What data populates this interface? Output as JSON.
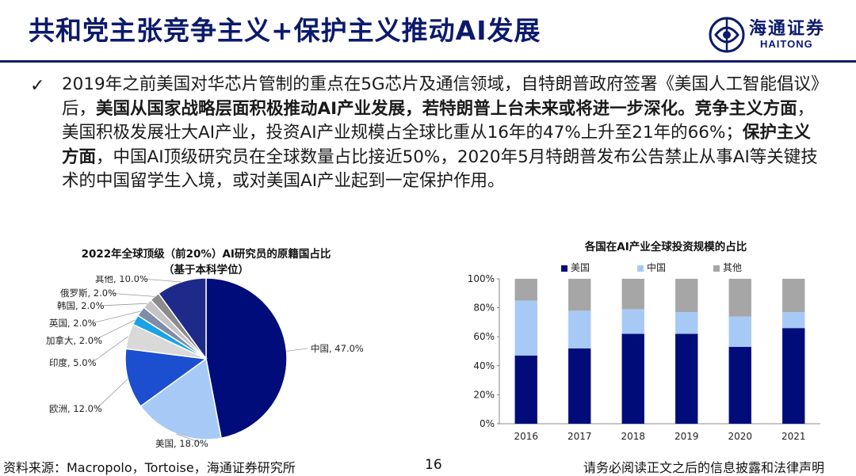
{
  "header": {
    "title": "共和党主张竞争主义+保护主义推动AI发展",
    "logo_cn": "海通证券",
    "logo_en": "HAITONG"
  },
  "body": {
    "bullet_icon": "checkmark-icon",
    "bullet_glyph": "✓",
    "segments": [
      {
        "text": "2019年之前美国对华芯片管制的重点在5G芯片及通信领域，自特朗普政府签署《美国人工智能倡议》后，",
        "bold": false
      },
      {
        "text": "美国从国家战略层面积极推动AI产业发展，若特朗普上台未来或将进一步深化。竞争主义方面",
        "bold": true
      },
      {
        "text": "，美国积极发展壮大AI产业，投资AI产业规模占全球比重从16年的47%上升至21年的66%；",
        "bold": false
      },
      {
        "text": "保护主义方面",
        "bold": true
      },
      {
        "text": "，中国AI顶级研究员在全球数量占比接近50%，2020年5月特朗普发布公告禁止从事AI等关键技术的中国留学生入境，或对美国AI产业起到一定保护作用。",
        "bold": false
      }
    ]
  },
  "chart_data": [
    {
      "type": "pie",
      "title": "2022年全球顶级（前20%）AI研究员的原籍国占比",
      "subtitle": "（基于本科学位）",
      "slices": [
        {
          "label": "中国",
          "value": 47.0,
          "display": "中国, 47.0%",
          "color": "#000c7a"
        },
        {
          "label": "美国",
          "value": 18.0,
          "display": "美国, 18.0%",
          "color": "#a7c9f6"
        },
        {
          "label": "欧洲",
          "value": 12.0,
          "display": "欧洲, 12.0%",
          "color": "#1b4fcf"
        },
        {
          "label": "印度",
          "value": 5.0,
          "display": "印度, 5.0%",
          "color": "#d9d9d9"
        },
        {
          "label": "加拿大",
          "value": 2.0,
          "display": "加拿大, 2.0%",
          "color": "#1aa3e8"
        },
        {
          "label": "英国",
          "value": 2.0,
          "display": "英国, 2.0%",
          "color": "#7f8ba8"
        },
        {
          "label": "韩国",
          "value": 2.0,
          "display": "韩国, 2.0%",
          "color": "#c4c4c4"
        },
        {
          "label": "俄罗斯",
          "value": 2.0,
          "display": "俄罗斯, 2.0%",
          "color": "#8c8c8c"
        },
        {
          "label": "其他",
          "value": 10.0,
          "display": "其他, 10.0%",
          "color": "#1e2a8a"
        }
      ]
    },
    {
      "type": "bar",
      "stacked": true,
      "title": "各国在AI产业全球投资规模的占比",
      "categories": [
        "2016",
        "2017",
        "2018",
        "2019",
        "2020",
        "2021"
      ],
      "series": [
        {
          "name": "美国",
          "color": "#000c7a",
          "values": [
            47,
            52,
            62,
            62,
            53,
            66
          ]
        },
        {
          "name": "中国",
          "color": "#a7c9f6",
          "values": [
            38,
            26,
            17,
            15,
            21,
            11
          ]
        },
        {
          "name": "其他",
          "color": "#a6a6a6",
          "values": [
            15,
            22,
            21,
            23,
            26,
            23
          ]
        }
      ],
      "yticks": [
        "0%",
        "20%",
        "40%",
        "60%",
        "80%",
        "100%"
      ],
      "ylim": [
        0,
        100
      ],
      "legend_position": "top"
    }
  ],
  "footer": {
    "source": "资料来源：Macropolo，Tortoise，海通证券研究所",
    "page": "16",
    "disclaimer": "请务必阅读正文之后的信息披露和法律声明"
  }
}
